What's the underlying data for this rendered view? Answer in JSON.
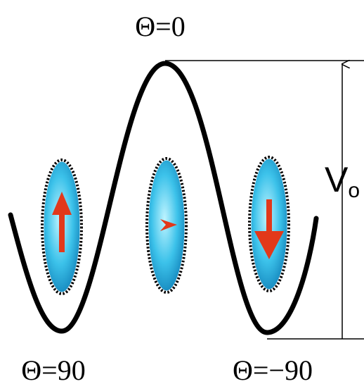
{
  "labels": {
    "top": "Θ=0",
    "left": "Θ=90",
    "right": "Θ=−90"
  },
  "potential": {
    "symbol": "V",
    "subscript": "o"
  }
}
